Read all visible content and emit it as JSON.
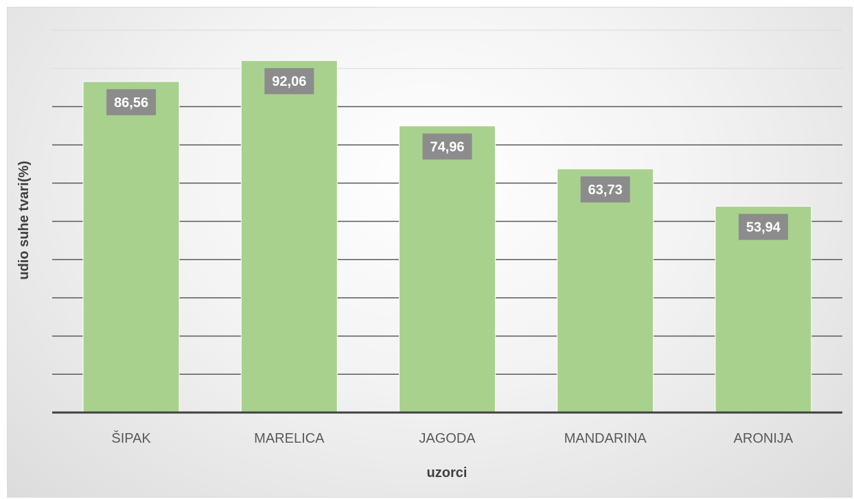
{
  "chart_data": {
    "type": "bar",
    "title": "",
    "xlabel": "uzorci",
    "ylabel": "udio suhe tvari(%)",
    "categories": [
      "ŠIPAK",
      "MARELICA",
      "JAGODA",
      "MANDARINA",
      "ARONIJA"
    ],
    "values": [
      86.56,
      92.06,
      74.96,
      63.73,
      53.94
    ],
    "data_labels": [
      "86,56",
      "92,06",
      "74,96",
      "63,73",
      "53,94"
    ],
    "ylim": [
      0,
      100
    ],
    "gridlines": true,
    "y_tick_labels_shown": false,
    "legend": "none",
    "bar_color": "#a9d18e",
    "label_box_color": "#8c8c8c",
    "gridline_color": "#595959"
  }
}
